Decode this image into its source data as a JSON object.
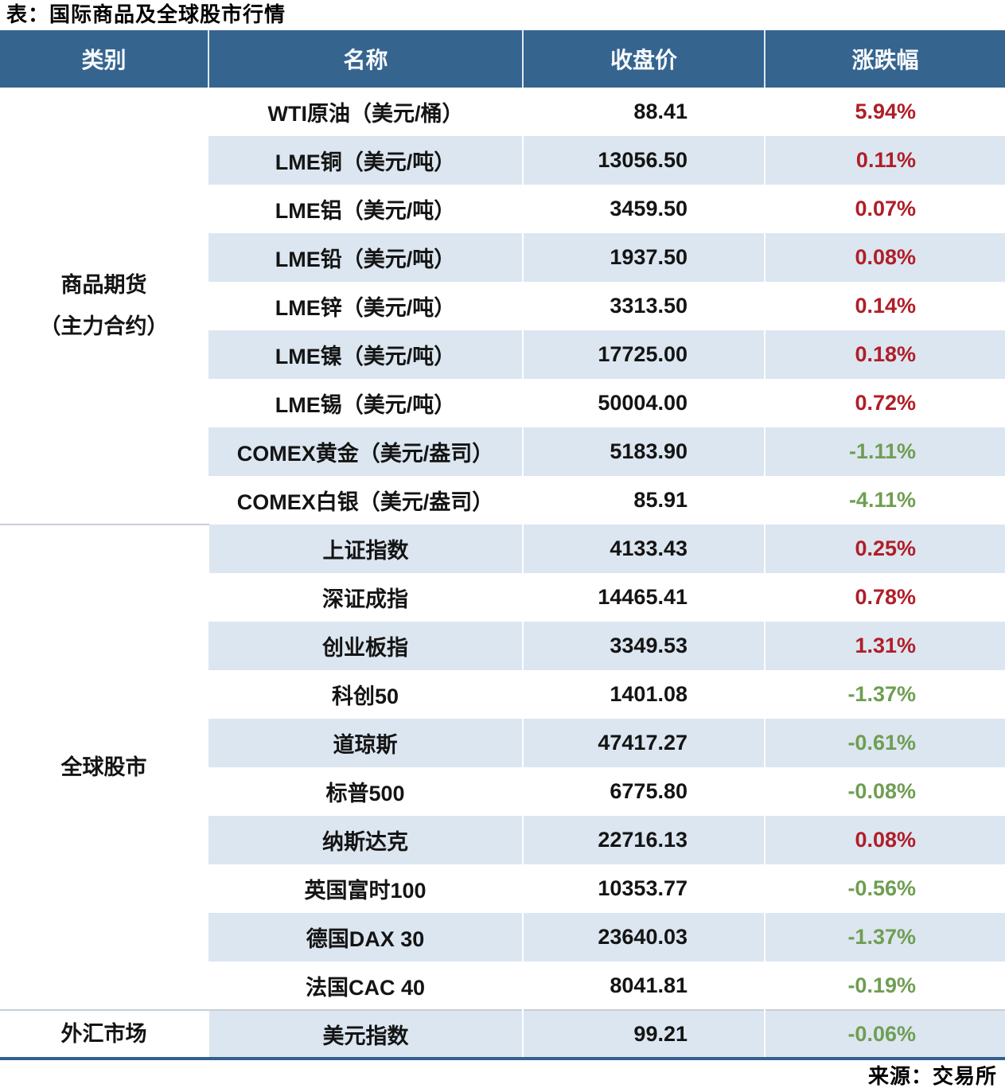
{
  "chart_data": {
    "type": "table",
    "title": "表：国际商品及全球股市行情",
    "source": "来源：交易所",
    "columns": [
      "类别",
      "名称",
      "收盘价",
      "涨跌幅"
    ],
    "groups": [
      {
        "category_lines": [
          "商品期货",
          "（主力合约）"
        ],
        "rows": [
          {
            "name": "WTI原油（美元/桶）",
            "close": "88.41",
            "change": "5.94%"
          },
          {
            "name": "LME铜（美元/吨）",
            "close": "13056.50",
            "change": "0.11%"
          },
          {
            "name": "LME铝（美元/吨）",
            "close": "3459.50",
            "change": "0.07%"
          },
          {
            "name": "LME铅（美元/吨）",
            "close": "1937.50",
            "change": "0.08%"
          },
          {
            "name": "LME锌（美元/吨）",
            "close": "3313.50",
            "change": "0.14%"
          },
          {
            "name": "LME镍（美元/吨）",
            "close": "17725.00",
            "change": "0.18%"
          },
          {
            "name": "LME锡（美元/吨）",
            "close": "50004.00",
            "change": "0.72%"
          },
          {
            "name": "COMEX黄金（美元/盎司）",
            "close": "5183.90",
            "change": "-1.11%"
          },
          {
            "name": "COMEX白银（美元/盎司）",
            "close": "85.91",
            "change": "-4.11%"
          }
        ]
      },
      {
        "category_lines": [
          "全球股市"
        ],
        "rows": [
          {
            "name": "上证指数",
            "close": "4133.43",
            "change": "0.25%"
          },
          {
            "name": "深证成指",
            "close": "14465.41",
            "change": "0.78%"
          },
          {
            "name": "创业板指",
            "close": "3349.53",
            "change": "1.31%"
          },
          {
            "name": "科创50",
            "close": "1401.08",
            "change": "-1.37%"
          },
          {
            "name": "道琼斯",
            "close": "47417.27",
            "change": "-0.61%"
          },
          {
            "name": "标普500",
            "close": "6775.80",
            "change": "-0.08%"
          },
          {
            "name": "纳斯达克",
            "close": "22716.13",
            "change": "0.08%"
          },
          {
            "name": "英国富时100",
            "close": "10353.77",
            "change": "-0.56%"
          },
          {
            "name": "德国DAX 30",
            "close": "23640.03",
            "change": "-1.37%"
          },
          {
            "name": "法国CAC 40",
            "close": "8041.81",
            "change": "-0.19%"
          }
        ]
      },
      {
        "category_lines": [
          "外汇市场"
        ],
        "rows": [
          {
            "name": "美元指数",
            "close": "99.21",
            "change": "-0.06%"
          }
        ]
      }
    ]
  },
  "colors": {
    "header_bg": "#35648F",
    "header_text": "#F7FAFC",
    "stripe_bg": "#DCE6F0",
    "up": "#B01E28",
    "down": "#6F9E52",
    "sep": "#C7CED6",
    "bottom_border": "#33608D",
    "text": "#141414"
  }
}
